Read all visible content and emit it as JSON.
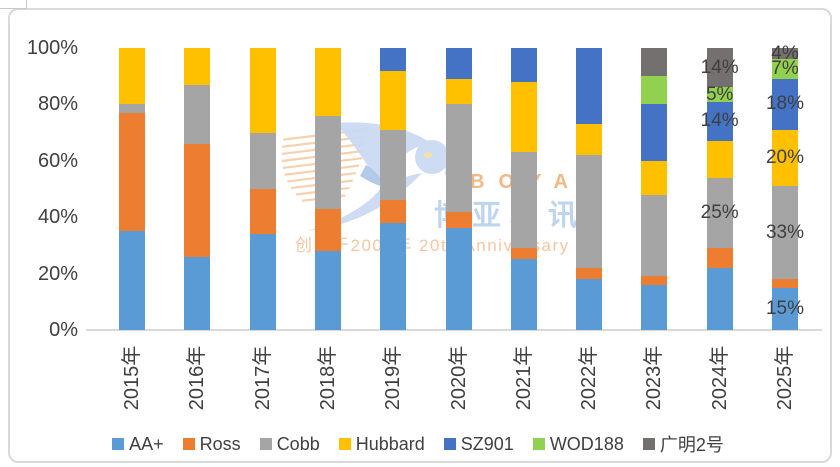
{
  "chart": {
    "watermark": {
      "brand_latin": "BOYAR",
      "brand_cn": "博亚和讯",
      "anniversary_line": "创立于2005年 20th Anniversary"
    },
    "axis": {
      "y_ticks": [
        "100%",
        "80%",
        "60%",
        "40%",
        "20%",
        "0%"
      ]
    },
    "colors": {
      "axis_line": "#D9D9D9",
      "text": "#404040"
    }
  },
  "chart_data": {
    "type": "bar",
    "stacked": true,
    "percent_stacked": true,
    "title": "",
    "xlabel": "",
    "ylabel": "",
    "ylim": [
      0,
      100
    ],
    "grid": false,
    "legend_position": "bottom",
    "categories": [
      "2015年",
      "2016年",
      "2017年",
      "2018年",
      "2019年",
      "2020年",
      "2021年",
      "2022年",
      "2023年",
      "2024年",
      "2025年"
    ],
    "series": [
      {
        "name": "AA+",
        "slug": "aa-plus",
        "color": "#5B9BD5",
        "values": [
          35,
          26,
          34,
          28,
          38,
          36,
          25,
          18,
          16,
          22,
          15
        ]
      },
      {
        "name": "Ross",
        "slug": "ross",
        "color": "#ED7D31",
        "values": [
          42,
          40,
          16,
          15,
          8,
          6,
          4,
          4,
          3,
          7,
          3
        ]
      },
      {
        "name": "Cobb",
        "slug": "cobb",
        "color": "#A5A5A5",
        "values": [
          3,
          21,
          20,
          33,
          25,
          38,
          34,
          40,
          29,
          25,
          33
        ]
      },
      {
        "name": "Hubbard",
        "slug": "hubbard",
        "color": "#FFC000",
        "values": [
          20,
          13,
          30,
          24,
          21,
          9,
          25,
          11,
          12,
          13,
          20
        ]
      },
      {
        "name": "SZ901",
        "slug": "sz901",
        "color": "#4472C4",
        "values": [
          0,
          0,
          0,
          0,
          8,
          11,
          12,
          27,
          20,
          14,
          18
        ]
      },
      {
        "name": "WOD188",
        "slug": "wod188",
        "color": "#92D050",
        "values": [
          0,
          0,
          0,
          0,
          0,
          0,
          0,
          0,
          10,
          5,
          7
        ]
      },
      {
        "name": "广明2号",
        "slug": "guangming-2hao",
        "color": "#757070",
        "values": [
          0,
          0,
          0,
          0,
          0,
          0,
          0,
          0,
          10,
          14,
          4
        ]
      }
    ],
    "data_labels": [
      {
        "category": "2024年",
        "series": "广明2号",
        "text": "14%"
      },
      {
        "category": "2024年",
        "series": "WOD188",
        "text": "5%"
      },
      {
        "category": "2024年",
        "series": "SZ901",
        "text": "14%"
      },
      {
        "category": "2024年",
        "series": "Cobb",
        "text": "25%"
      },
      {
        "category": "2025年",
        "series": "广明2号",
        "text": "4%"
      },
      {
        "category": "2025年",
        "series": "WOD188",
        "text": "7%"
      },
      {
        "category": "2025年",
        "series": "SZ901",
        "text": "18%"
      },
      {
        "category": "2025年",
        "series": "Hubbard",
        "text": "20%"
      },
      {
        "category": "2025年",
        "series": "Cobb",
        "text": "33%"
      },
      {
        "category": "2025年",
        "series": "AA+",
        "text": "15%"
      }
    ]
  }
}
